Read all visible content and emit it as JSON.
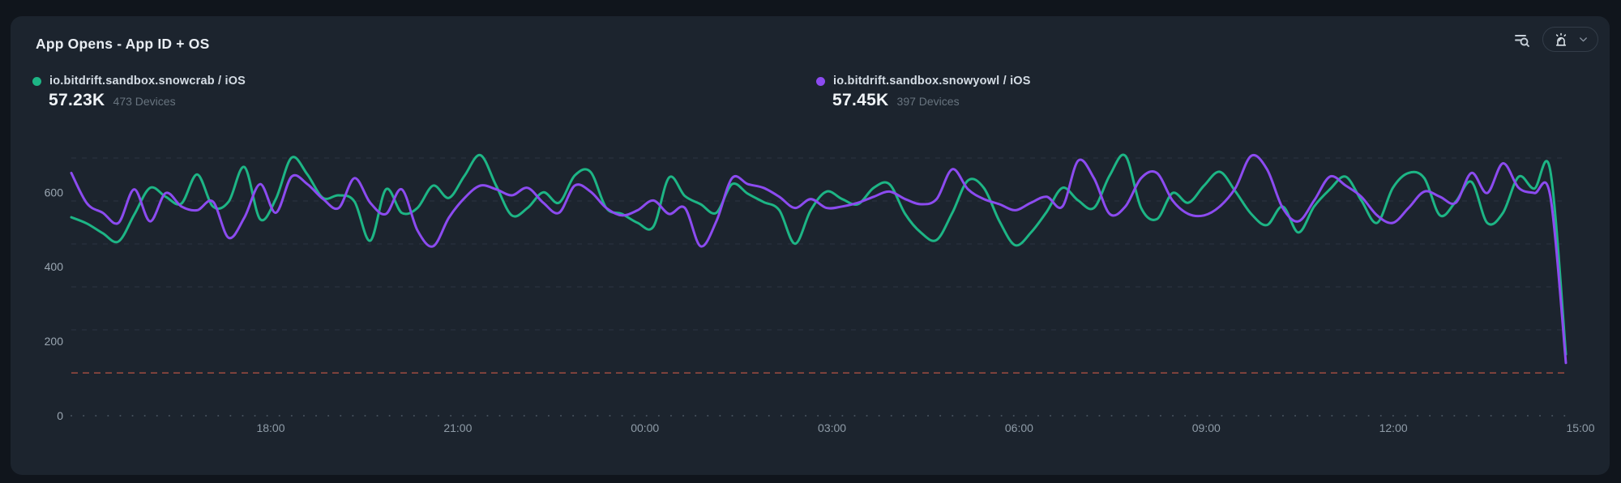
{
  "card": {
    "title": "App Opens - App ID + OS"
  },
  "toolbar": {
    "icons": [
      {
        "name": "list-search-icon"
      },
      {
        "name": "siren-icon"
      },
      {
        "name": "chevron-down-icon"
      }
    ]
  },
  "legend": [
    {
      "label": "io.bitdrift.sandbox.snowcrab / iOS",
      "total": "57.23K",
      "devices": "473 Devices"
    },
    {
      "label": "io.bitdrift.sandbox.snowyowl / iOS",
      "total": "57.45K",
      "devices": "397 Devices"
    }
  ],
  "chart_data": {
    "type": "line",
    "title": "App Opens - App ID + OS",
    "x_ticks": [
      "18:00",
      "21:00",
      "00:00",
      "03:00",
      "06:00",
      "09:00",
      "12:00",
      "15:00"
    ],
    "x_range_hours": 24,
    "interval_minutes": 15,
    "y_ticks": [
      0,
      200,
      400,
      600
    ],
    "ylim": [
      0,
      790
    ],
    "grid": "horizontal-dashed",
    "legend_position": "top",
    "threshold": {
      "value": 115,
      "color": "#94493f",
      "style": "dashed"
    },
    "colors": {
      "background": "#1c242e",
      "page": "#10151c",
      "axis_text": "#9aa6b1",
      "gridline": "#2b3441"
    },
    "series": [
      {
        "name": "io.bitdrift.sandbox.snowcrab / iOS",
        "color": "#1db585",
        "values": [
          533,
          516,
          490,
          468,
          540,
          612,
          588,
          570,
          648,
          562,
          575,
          668,
          528,
          582,
          693,
          648,
          585,
          592,
          575,
          470,
          608,
          545,
          558,
          618,
          585,
          645,
          700,
          618,
          538,
          558,
          600,
          572,
          645,
          655,
          558,
          542,
          518,
          508,
          640,
          590,
          568,
          545,
          622,
          596,
          574,
          552,
          462,
          552,
          602,
          582,
          568,
          612,
          622,
          542,
          492,
          472,
          545,
          632,
          612,
          522,
          458,
          492,
          548,
          612,
          578,
          558,
          645,
          698,
          558,
          528,
          598,
          572,
          618,
          655,
          602,
          542,
          512,
          562,
          492,
          562,
          608,
          642,
          578,
          518,
          612,
          652,
          638,
          538,
          575,
          628,
          518,
          545,
          642,
          610,
          660,
          165
        ]
      },
      {
        "name": "io.bitdrift.sandbox.snowyowl / iOS",
        "color": "#8c4bf0",
        "values": [
          652,
          570,
          545,
          518,
          608,
          522,
          598,
          562,
          552,
          575,
          478,
          532,
          622,
          545,
          642,
          622,
          582,
          558,
          638,
          572,
          542,
          608,
          498,
          455,
          532,
          585,
          618,
          608,
          592,
          612,
          572,
          545,
          618,
          602,
          558,
          538,
          552,
          578,
          542,
          558,
          455,
          522,
          638,
          622,
          612,
          588,
          558,
          582,
          558,
          562,
          572,
          588,
          602,
          582,
          568,
          582,
          662,
          608,
          582,
          568,
          552,
          572,
          588,
          562,
          685,
          638,
          542,
          562,
          638,
          652,
          578,
          542,
          538,
          562,
          612,
          698,
          662,
          558,
          522,
          578,
          642,
          618,
          588,
          538,
          518,
          558,
          602,
          588,
          572,
          652,
          598,
          678,
          612,
          598,
          592,
          142
        ]
      }
    ]
  }
}
